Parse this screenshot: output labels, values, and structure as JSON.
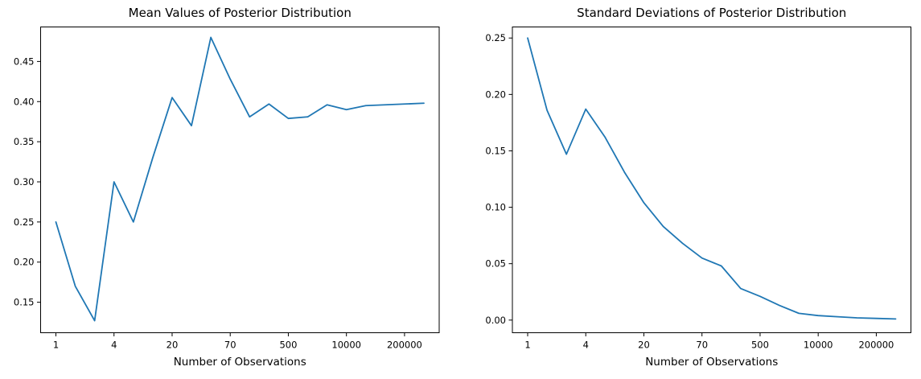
{
  "figure": {
    "background": "#ffffff",
    "text_color": "#000000",
    "line_color": "#1f77b4"
  },
  "chart_data": [
    {
      "type": "line",
      "title": "Mean Values of Posterior Distribution",
      "xlabel": "Number of Observations",
      "ylabel": "",
      "legend": null,
      "grid": false,
      "n_points": 20,
      "x_tick_labels": [
        "1",
        "4",
        "20",
        "70",
        "500",
        "10000",
        "200000"
      ],
      "x_tick_indices": [
        0,
        3,
        6,
        9,
        12,
        15,
        18
      ],
      "y_tick_labels": [
        "0.15",
        "0.20",
        "0.25",
        "0.30",
        "0.35",
        "0.40",
        "0.45"
      ],
      "y_tick_values": [
        0.15,
        0.2,
        0.25,
        0.3,
        0.35,
        0.4,
        0.45
      ],
      "ylim": [
        0.112,
        0.493
      ],
      "line_color": "#1f77b4",
      "values": [
        0.25,
        0.17,
        0.127,
        0.3,
        0.25,
        0.33,
        0.405,
        0.37,
        0.48,
        0.428,
        0.381,
        0.397,
        0.379,
        0.381,
        0.396,
        0.39,
        0.395,
        0.396,
        0.397,
        0.398
      ]
    },
    {
      "type": "line",
      "title": "Standard Deviations of Posterior Distribution",
      "xlabel": "Number of Observations",
      "ylabel": "",
      "legend": null,
      "grid": false,
      "n_points": 20,
      "x_tick_labels": [
        "1",
        "4",
        "20",
        "70",
        "500",
        "10000",
        "200000"
      ],
      "x_tick_indices": [
        0,
        3,
        6,
        9,
        12,
        15,
        18
      ],
      "y_tick_labels": [
        "0.00",
        "0.05",
        "0.10",
        "0.15",
        "0.20",
        "0.25"
      ],
      "y_tick_values": [
        0.0,
        0.05,
        0.1,
        0.15,
        0.2,
        0.25
      ],
      "ylim": [
        -0.0112,
        0.2598
      ],
      "line_color": "#1f77b4",
      "values": [
        0.25,
        0.186,
        0.147,
        0.187,
        0.162,
        0.131,
        0.104,
        0.083,
        0.068,
        0.055,
        0.048,
        0.028,
        0.021,
        0.013,
        0.006,
        0.004,
        0.003,
        0.002,
        0.0015,
        0.001
      ]
    }
  ]
}
